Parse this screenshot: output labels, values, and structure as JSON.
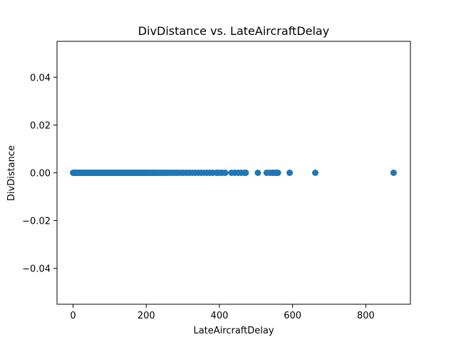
{
  "chart_data": {
    "type": "scatter",
    "title": "DivDistance vs. LateAircraftDelay",
    "xlabel": "LateAircraftDelay",
    "ylabel": "DivDistance",
    "xlim": [
      -43.9,
      921.9
    ],
    "ylim": [
      -0.055,
      0.055
    ],
    "xticks": [
      0,
      200,
      400,
      600,
      800
    ],
    "xtick_labels": [
      "0",
      "200",
      "400",
      "600",
      "800"
    ],
    "yticks": [
      -0.04,
      -0.02,
      0.0,
      0.02,
      0.04
    ],
    "ytick_labels": [
      "−0.04",
      "−0.02",
      "0.00",
      "0.02",
      "0.04"
    ],
    "grid": false,
    "legend": "none",
    "marker_color": "#1f77b4",
    "series": [
      {
        "x": [
          0,
          2,
          4,
          6,
          8,
          10,
          12,
          14,
          16,
          18,
          20,
          22,
          24,
          26,
          28,
          30,
          32,
          34,
          36,
          38,
          40,
          42,
          44,
          46,
          48,
          50,
          52,
          54,
          56,
          58,
          60,
          62,
          64,
          66,
          68,
          70,
          72,
          74,
          76,
          78,
          80,
          82,
          84,
          86,
          88,
          90,
          92,
          94,
          96,
          98,
          100,
          102,
          104,
          106,
          108,
          110,
          112,
          114,
          116,
          118,
          120,
          122,
          124,
          126,
          128,
          130,
          132,
          134,
          136,
          138,
          140,
          142,
          144,
          146,
          148,
          150,
          152,
          154,
          156,
          158,
          160,
          162,
          164,
          166,
          168,
          170,
          172,
          174,
          176,
          178,
          180,
          182,
          184,
          186,
          188,
          190,
          192,
          194,
          196,
          198,
          200,
          203,
          206,
          209,
          212,
          215,
          218,
          221,
          224,
          227,
          230,
          234,
          238,
          242,
          246,
          250,
          254,
          259,
          264,
          270,
          276,
          282,
          288,
          295,
          302,
          310,
          318,
          326,
          334,
          342,
          350,
          358,
          366,
          374,
          382,
          392,
          396,
          403,
          408,
          416,
          433,
          442,
          451,
          459,
          468,
          472,
          505,
          529,
          538,
          546,
          552,
          556,
          560,
          592,
          662,
          876
        ],
        "y": [
          0,
          0,
          0,
          0,
          0,
          0,
          0,
          0,
          0,
          0,
          0,
          0,
          0,
          0,
          0,
          0,
          0,
          0,
          0,
          0,
          0,
          0,
          0,
          0,
          0,
          0,
          0,
          0,
          0,
          0,
          0,
          0,
          0,
          0,
          0,
          0,
          0,
          0,
          0,
          0,
          0,
          0,
          0,
          0,
          0,
          0,
          0,
          0,
          0,
          0,
          0,
          0,
          0,
          0,
          0,
          0,
          0,
          0,
          0,
          0,
          0,
          0,
          0,
          0,
          0,
          0,
          0,
          0,
          0,
          0,
          0,
          0,
          0,
          0,
          0,
          0,
          0,
          0,
          0,
          0,
          0,
          0,
          0,
          0,
          0,
          0,
          0,
          0,
          0,
          0,
          0,
          0,
          0,
          0,
          0,
          0,
          0,
          0,
          0,
          0,
          0,
          0,
          0,
          0,
          0,
          0,
          0,
          0,
          0,
          0,
          0,
          0,
          0,
          0,
          0,
          0,
          0,
          0,
          0,
          0,
          0,
          0,
          0,
          0,
          0,
          0,
          0,
          0,
          0,
          0,
          0,
          0,
          0,
          0,
          0,
          0,
          0,
          0,
          0,
          0,
          0,
          0,
          0,
          0,
          0,
          0,
          0,
          0,
          0,
          0,
          0,
          0,
          0,
          0,
          0,
          0
        ]
      }
    ]
  }
}
